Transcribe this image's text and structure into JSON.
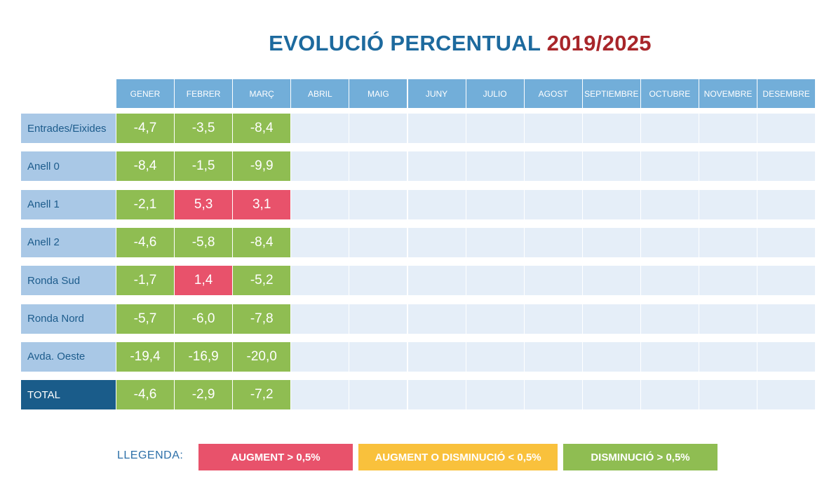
{
  "title": {
    "main": "EVOLUCIÓ PERCENTUAL",
    "years": "2019/2025"
  },
  "colors": {
    "header": "#72aed9",
    "row_label": "#a9c8e6",
    "total_label": "#1a5c8a",
    "empty": "#e5eef8",
    "increase": "#e8526b",
    "neutral": "#f9c13c",
    "decrease": "#8fbd52"
  },
  "chart_data": {
    "type": "table",
    "title": "EVOLUCIÓ PERCENTUAL 2019/2025",
    "columns": [
      "GENER",
      "FEBRER",
      "MARÇ",
      "ABRIL",
      "MAIG",
      "JUNY",
      "JULIO",
      "AGOST",
      "SEPTIEMBRE",
      "OCTUBRE",
      "NOVEMBRE",
      "DESEMBRE"
    ],
    "rows": [
      {
        "label": "Entrades/Eixides",
        "values": [
          -4.7,
          -3.5,
          -8.4
        ]
      },
      {
        "label": "Anell 0",
        "values": [
          -8.4,
          -1.5,
          -9.9
        ]
      },
      {
        "label": "Anell 1",
        "values": [
          -2.1,
          5.3,
          3.1
        ]
      },
      {
        "label": "Anell 2",
        "values": [
          -4.6,
          -5.8,
          -8.4
        ]
      },
      {
        "label": "Ronda Sud",
        "values": [
          -1.7,
          1.4,
          -5.2
        ]
      },
      {
        "label": "Ronda Nord",
        "values": [
          -5.7,
          -6.0,
          -7.8
        ]
      },
      {
        "label": "Avda. Oeste",
        "values": [
          -19.4,
          -16.9,
          -20.0
        ]
      },
      {
        "label": "TOTAL",
        "values": [
          -4.6,
          -2.9,
          -7.2
        ],
        "is_total": true
      }
    ],
    "legend_threshold": 0.5
  },
  "legend": {
    "label": "LLEGENDA:",
    "items": [
      {
        "key": "increase",
        "text": "AUGMENT  > 0,5%"
      },
      {
        "key": "neutral",
        "text": "AUGMENT O DISMINUCIÓ  < 0,5%"
      },
      {
        "key": "decrease",
        "text": "DISMINUCIÓ  > 0,5%"
      }
    ]
  }
}
